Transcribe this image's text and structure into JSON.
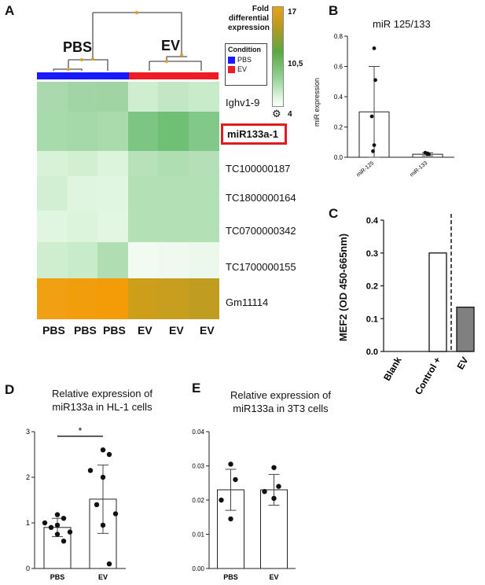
{
  "panel_letters": {
    "a": "A",
    "b": "B",
    "c": "C",
    "d": "D",
    "e": "E"
  },
  "heatmap": {
    "group_labels": [
      "PBS",
      "EV"
    ],
    "legend": {
      "title": "Fold differential expression",
      "title_line1": "Fold",
      "title_line2": "differential",
      "title_line3": "expression",
      "max": "17",
      "mid": "10,5",
      "min": "4"
    },
    "condition_legend": {
      "title": "Condition",
      "items": [
        {
          "label": "PBS",
          "color": "#1a1aff"
        },
        {
          "label": "EV",
          "color": "#ee1c24"
        }
      ]
    },
    "genes": [
      "Ighv1-9",
      "miR133a-1",
      "TC100000187",
      "TC1800000164",
      "TC0700000342",
      "TC1700000155",
      "Gm11114"
    ],
    "highlighted_gene": "miR133a-1",
    "columns": [
      "PBS",
      "PBS",
      "PBS",
      "EV",
      "EV",
      "EV"
    ],
    "cell_colors": [
      [
        "#a9d9ac",
        "#a2d5a6",
        "#a0d4a3",
        "#cfeecf",
        "#c3e7c5",
        "#c8ebca"
      ],
      [
        "#a8dbab",
        "#a6d9a9",
        "#a9dbac",
        "#7cc582",
        "#6fbf74",
        "#82c888"
      ],
      [
        "#d8f2d8",
        "#d2efd2",
        "#dcf4dc",
        "#b7e1b9",
        "#afdeb2",
        "#b5e0b7"
      ],
      [
        "#d3efd3",
        "#dff5df",
        "#e1f6e1",
        "#b4e0b6",
        "#b4e0b6",
        "#b4e0b6"
      ],
      [
        "#e1f6e1",
        "#dcf4dc",
        "#e2f6e2",
        "#b3e0b5",
        "#b3e0b5",
        "#b3e0b5"
      ],
      [
        "#cfeecf",
        "#c8ebca",
        "#b0deb2",
        "#f2fbf2",
        "#eff9ef",
        "#edf8ed"
      ],
      [
        "#f0a012",
        "#f29d0c",
        "#f49c08",
        "#cc9e1a",
        "#c79e1d",
        "#c09c20"
      ]
    ]
  },
  "chart_data": [
    {
      "panel": "B",
      "type": "bar",
      "title": "miR 125/133",
      "ylabel": "miR expression",
      "categories": [
        "miR-125",
        "miR-133"
      ],
      "values": [
        0.3,
        0.02
      ],
      "error": [
        0.3,
        0.01
      ],
      "points": [
        [
          0.72,
          0.51,
          0.27,
          0.08,
          0.04
        ],
        [
          0.025,
          0.02,
          0.03,
          0.02
        ]
      ],
      "ylim": [
        0,
        0.8
      ],
      "yticks": [
        "0.0",
        "0.2",
        "0.4",
        "0.6",
        "0.8"
      ]
    },
    {
      "panel": "C",
      "type": "bar",
      "title": "",
      "ylabel": "MEF2 (OD 450-665nm)",
      "categories": [
        "Blank",
        "Control +",
        "EV"
      ],
      "values": [
        0,
        0.3,
        0.135
      ],
      "colors": [
        "#ffffff",
        "#ffffff",
        "#808080"
      ],
      "ylim": [
        0,
        0.4
      ],
      "yticks": [
        "0.0",
        "0.1",
        "0.2",
        "0.3",
        "0.4"
      ]
    },
    {
      "panel": "D",
      "type": "bar",
      "title": "Relative expression of miR133a in HL-1 cells",
      "title_line1": "Relative expression of",
      "title_line2": "miR133a in HL-1 cells",
      "ylabel": "",
      "categories": [
        "PBS",
        "EV"
      ],
      "values": [
        0.9,
        1.52
      ],
      "error": [
        0.2,
        0.75
      ],
      "points": [
        [
          1.18,
          1.1,
          1.0,
          0.95,
          0.9,
          0.8,
          0.75,
          0.6
        ],
        [
          2.6,
          2.5,
          2.15,
          2.0,
          1.4,
          1.2,
          0.95,
          0.1
        ]
      ],
      "ylim": [
        0,
        3
      ],
      "yticks": [
        "0",
        "1",
        "2",
        "3"
      ],
      "significance": "*"
    },
    {
      "panel": "E",
      "type": "bar",
      "title": "Relative expression of miR133a in 3T3 cells",
      "title_line1": "Relative expression of",
      "title_line2": "miR133a in 3T3 cells",
      "ylabel": "",
      "categories": [
        "PBS",
        "EV"
      ],
      "values": [
        0.023,
        0.023
      ],
      "error": [
        0.006,
        0.0045
      ],
      "points": [
        [
          0.0305,
          0.026,
          0.02,
          0.0145
        ],
        [
          0.0295,
          0.024,
          0.0225,
          0.0205
        ]
      ],
      "ylim": [
        0,
        0.04
      ],
      "yticks": [
        "0.00",
        "0.01",
        "0.02",
        "0.03",
        "0.04"
      ]
    }
  ]
}
